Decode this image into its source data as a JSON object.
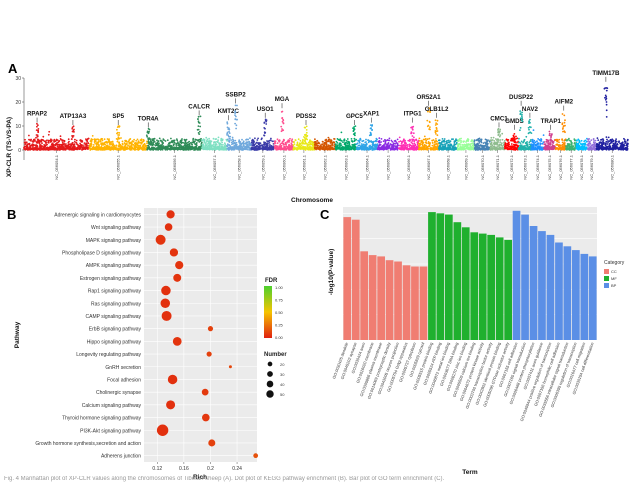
{
  "figure": {
    "panelA": "A",
    "panelB": "B",
    "panelC": "C",
    "caption": "Fig. 4 Manhattan plot of XP-CLR values along the chromosomes of Tibetan sheep (A). Dot plot of KEGG pathway enrichment (B). Bar plot of GO term enrichment (C)."
  },
  "chart_data": [
    {
      "type": "scatter",
      "panel": "A",
      "ylabel": "XP-CLR (TS-VS-PA)",
      "xlabel": "Chromosome",
      "ylim": [
        0,
        30
      ],
      "yticks": [
        0,
        10,
        20,
        30
      ],
      "chromosomes": [
        {
          "name": "NC_056054.1",
          "w": 62,
          "color": "#e41a1c"
        },
        {
          "name": "NC_056055.1",
          "w": 55,
          "color": "#ffb300"
        },
        {
          "name": "NC_056056.1",
          "w": 52,
          "color": "#2e8b57"
        },
        {
          "name": "NC_056057.1",
          "w": 24,
          "color": "#7fe0c2"
        },
        {
          "name": "NC_056058.1",
          "w": 23,
          "color": "#6fa8dc"
        },
        {
          "name": "NC_056059.1",
          "w": 22,
          "color": "#3a3aa8"
        },
        {
          "name": "NC_056060.1",
          "w": 18,
          "color": "#ff4d8d"
        },
        {
          "name": "NC_056061.1",
          "w": 20,
          "color": "#e8e817"
        },
        {
          "name": "NC_056062.1",
          "w": 20,
          "color": "#d45500"
        },
        {
          "name": "NC_056063.1",
          "w": 20,
          "color": "#00a86b"
        },
        {
          "name": "NC_056064.1",
          "w": 20,
          "color": "#2fa4e7"
        },
        {
          "name": "NC_056065.1",
          "w": 20,
          "color": "#8a2be2"
        },
        {
          "name": "NC_056066.1",
          "w": 19,
          "color": "#ff2fb4"
        },
        {
          "name": "NC_056067.1",
          "w": 19,
          "color": "#ffa500"
        },
        {
          "name": "NC_056068.1",
          "w": 18,
          "color": "#17a2b8"
        },
        {
          "name": "NC_056069.1",
          "w": 16,
          "color": "#98ff98"
        },
        {
          "name": "NC_056070.1",
          "w": 15,
          "color": "#4682b4"
        },
        {
          "name": "NC_056071.1",
          "w": 14,
          "color": "#8fbc8f"
        },
        {
          "name": "NC_056072.1",
          "w": 13,
          "color": "#ff0000"
        },
        {
          "name": "NC_056073.1",
          "w": 12,
          "color": "#20b2aa"
        },
        {
          "name": "NC_056074.1",
          "w": 12,
          "color": "#1e90ff"
        },
        {
          "name": "NC_056075.1",
          "w": 11,
          "color": "#d04090"
        },
        {
          "name": "NC_056076.1",
          "w": 10,
          "color": "#ff8c00"
        },
        {
          "name": "NC_056077.1",
          "w": 10,
          "color": "#3cb371"
        },
        {
          "name": "NC_056078.1",
          "w": 10,
          "color": "#00bfff"
        },
        {
          "name": "NC_056079.1",
          "w": 9,
          "color": "#9370db"
        },
        {
          "name": "NC_056080.1",
          "w": 30,
          "color": "#1f1fa0"
        }
      ],
      "genes": [
        {
          "name": "RPAP2",
          "chrom": 0,
          "pos": 0.2,
          "y": 11
        },
        {
          "name": "ATP13A3",
          "chrom": 0,
          "pos": 0.75,
          "y": 10
        },
        {
          "name": "SP5",
          "chrom": 1,
          "pos": 0.5,
          "y": 10
        },
        {
          "name": "TOR4A",
          "chrom": 2,
          "pos": 0.02,
          "y": 9
        },
        {
          "name": "CALCR",
          "chrom": 2,
          "pos": 0.95,
          "y": 14
        },
        {
          "name": "KMT2C",
          "chrom": 4,
          "pos": 0.05,
          "y": 12
        },
        {
          "name": "SSBP2",
          "chrom": 4,
          "pos": 0.35,
          "y": 19
        },
        {
          "name": "USO1",
          "chrom": 5,
          "pos": 0.6,
          "y": 13
        },
        {
          "name": "MGA",
          "chrom": 6,
          "pos": 0.4,
          "y": 17
        },
        {
          "name": "PDSS2",
          "chrom": 7,
          "pos": 0.6,
          "y": 10
        },
        {
          "name": "GPC5",
          "chrom": 9,
          "pos": 0.9,
          "y": 10
        },
        {
          "name": "XAP1",
          "chrom": 10,
          "pos": 0.7,
          "y": 11
        },
        {
          "name": "ITPG1",
          "chrom": 12,
          "pos": 0.7,
          "y": 11
        },
        {
          "name": "OR52A1",
          "chrom": 13,
          "pos": 0.5,
          "y": 18
        },
        {
          "name": "GLB1L2",
          "chrom": 13,
          "pos": 0.9,
          "y": 13
        },
        {
          "name": "CMC1",
          "chrom": 17,
          "pos": 0.6,
          "y": 9
        },
        {
          "name": "GMDS",
          "chrom": 18,
          "pos": 0.7,
          "y": 8
        },
        {
          "name": "DUSP22",
          "chrom": 19,
          "pos": 0.2,
          "y": 18
        },
        {
          "name": "NAV2",
          "chrom": 19,
          "pos": 0.9,
          "y": 13
        },
        {
          "name": "TRAP1",
          "chrom": 21,
          "pos": 0.6,
          "y": 8
        },
        {
          "name": "AIFM2",
          "chrom": 22,
          "pos": 0.8,
          "y": 16
        },
        {
          "name": "TIMM17B",
          "chrom": 26,
          "pos": 0.3,
          "y": 28
        }
      ]
    },
    {
      "type": "scatter",
      "panel": "B",
      "xlabel": "Rich",
      "ylabel": "Pathway",
      "xlim": [
        0.1,
        0.27
      ],
      "xticks": [
        0.12,
        0.16,
        0.2,
        0.24
      ],
      "categories": [
        "Adrenergic signaling in cardiomyocytes",
        "Wnt signaling pathway",
        "MAPK signaling pathway",
        "Phospholipase D signaling pathway",
        "AMPK signaling pathway",
        "Estrogen signaling pathway",
        "Rap1 signaling pathway",
        "Ras signaling pathway",
        "CAMP signaling pathway",
        "ErbB signaling pathway",
        "Hippo signaling pathway",
        "Longevity regulating pathway",
        "GnRH secretion",
        "Focal adhesion",
        "Cholinergic synapse",
        "Calcium signaling pathway",
        "Thyroid hormone signaling pathway",
        "PI3K-Akt signaling pathway",
        "Growth hormone synthesis,secretion and action",
        "Adherens junction"
      ],
      "rich": [
        0.14,
        0.137,
        0.125,
        0.145,
        0.153,
        0.15,
        0.133,
        0.132,
        0.134,
        0.2,
        0.15,
        0.198,
        0.23,
        0.143,
        0.192,
        0.14,
        0.193,
        0.128,
        0.202,
        0.268
      ],
      "number": [
        30,
        26,
        44,
        30,
        30,
        28,
        40,
        40,
        44,
        12,
        34,
        12,
        4,
        40,
        20,
        36,
        26,
        58,
        22,
        10
      ],
      "fdr": [
        0.05,
        0.05,
        0.06,
        0.06,
        0.06,
        0.06,
        0.05,
        0.05,
        0.05,
        0.1,
        0.06,
        0.1,
        0.12,
        0.05,
        0.08,
        0.05,
        0.07,
        0.05,
        0.1,
        0.15
      ],
      "legend": {
        "fdr_title": "FDR",
        "fdr_ticks": [
          "1.00",
          "0.75",
          "0.50",
          "0.25",
          "0.00"
        ],
        "number_title": "Number",
        "number_ticks": [
          20,
          30,
          40,
          50
        ]
      }
    },
    {
      "type": "bar",
      "panel": "C",
      "ylabel": "-log10(P-value)",
      "xlabel": "Term",
      "legend_title": "Category",
      "category_colors": {
        "CC": "#f07d72",
        "MF": "#1fb02e",
        "BP": "#5b8fe6"
      },
      "bars": [
        {
          "term": "GO:0030425 dendrite",
          "cat": "CC",
          "value": 9.7
        },
        {
          "term": "GO:0045202 synapse",
          "cat": "CC",
          "value": 9.5
        },
        {
          "term": "GO:0030424 axon",
          "cat": "CC",
          "value": 7.0
        },
        {
          "term": "GO:0016020 membrane",
          "cat": "CC",
          "value": 6.7
        },
        {
          "term": "GO:0005886 plasma membrane",
          "cat": "CC",
          "value": 6.6
        },
        {
          "term": "GO:0014069 postsynaptic density",
          "cat": "CC",
          "value": 6.3
        },
        {
          "term": "GO:0043005 neuron projection",
          "cat": "CC",
          "value": 6.2
        },
        {
          "term": "GO:0005794 Golgi apparatus",
          "cat": "CC",
          "value": 5.9
        },
        {
          "term": "GO:0005737 cytoplasm",
          "cat": "CC",
          "value": 5.8
        },
        {
          "term": "GO:0005829 cytosol",
          "cat": "CC",
          "value": 5.8
        },
        {
          "term": "GO:0005515 protein binding",
          "cat": "MF",
          "value": 10.1
        },
        {
          "term": "GO:0005524 ATP binding",
          "cat": "MF",
          "value": 10.0
        },
        {
          "term": "GO:0046872 metal ion binding",
          "cat": "MF",
          "value": 9.9
        },
        {
          "term": "GO:0003677 DNA binding",
          "cat": "MF",
          "value": 9.3
        },
        {
          "term": "GO:0008270 zinc ion binding",
          "cat": "MF",
          "value": 8.9
        },
        {
          "term": "GO:0005509 calcium ion binding",
          "cat": "MF",
          "value": 8.5
        },
        {
          "term": "GO:0004672 protein kinase activity",
          "cat": "MF",
          "value": 8.4
        },
        {
          "term": "GO:0003700 transcription factor activity",
          "cat": "MF",
          "value": 8.3
        },
        {
          "term": "GO:0042802 identical protein binding",
          "cat": "MF",
          "value": 8.1
        },
        {
          "term": "GO:0005096 GTPase activator activity",
          "cat": "MF",
          "value": 7.9
        },
        {
          "term": "GO:0007155 cell adhesion",
          "cat": "BP",
          "value": 10.2
        },
        {
          "term": "GO:0007165 signal transduction",
          "cat": "BP",
          "value": 9.9
        },
        {
          "term": "GO:0006468 protein phosphorylation",
          "cat": "BP",
          "value": 9.0
        },
        {
          "term": "GO:0007411 axon guidance",
          "cat": "BP",
          "value": 8.6
        },
        {
          "term": "GO:0045944 positive regulation of transcription",
          "cat": "BP",
          "value": 8.3
        },
        {
          "term": "GO:0007156 homophilic cell adhesion",
          "cat": "BP",
          "value": 7.7
        },
        {
          "term": "GO:0035556 intracellular signal transduction",
          "cat": "BP",
          "value": 7.4
        },
        {
          "term": "GO:0006355 regulation of transcription",
          "cat": "BP",
          "value": 7.1
        },
        {
          "term": "GO:0016477 cell migration",
          "cat": "BP",
          "value": 6.8
        },
        {
          "term": "GO:0030154 cell differentiation",
          "cat": "BP",
          "value": 6.6
        }
      ],
      "ylim": [
        0,
        10.5
      ]
    }
  ]
}
